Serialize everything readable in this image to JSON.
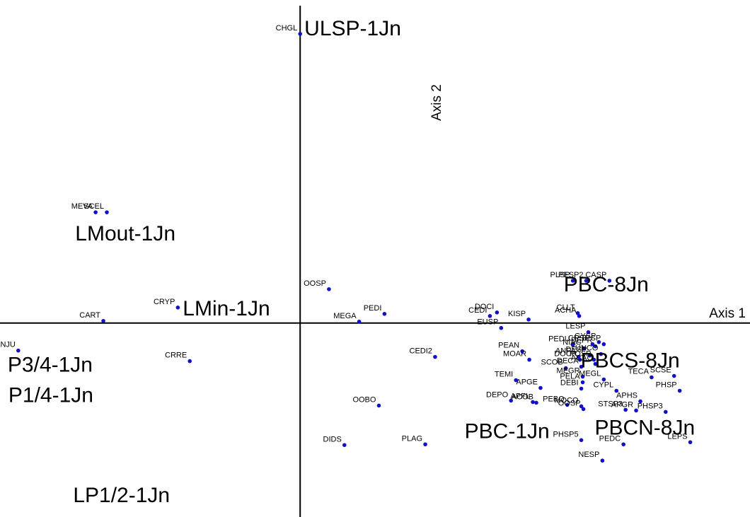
{
  "chart_data": {
    "type": "scatter",
    "title": "",
    "axis_labels": {
      "x": "Axis 1",
      "y": "Axis 2"
    },
    "xlim": [
      -427,
      640
    ],
    "ylim": [
      -275,
      458
    ],
    "colors": {
      "points": "#1010c8",
      "axes": "#000000",
      "text": "#000000"
    },
    "species": [
      {
        "name": "CHGL",
        "x": 0,
        "y": 410
      },
      {
        "name": "MEVA",
        "x": -291,
        "y": 157
      },
      {
        "name": "SCEL",
        "x": -275,
        "y": 157
      },
      {
        "name": "OOSP",
        "x": 41,
        "y": 48
      },
      {
        "name": "CRYP",
        "x": -174,
        "y": 22
      },
      {
        "name": "CART",
        "x": -280,
        "y": 3
      },
      {
        "name": "MEGA",
        "x": 84,
        "y": 2
      },
      {
        "name": "PEDI",
        "x": 120,
        "y": 13
      },
      {
        "name": "ANJU",
        "x": -401,
        "y": -39
      },
      {
        "name": "CRRE",
        "x": -157,
        "y": -54
      },
      {
        "name": "CEDI2",
        "x": 192,
        "y": -48
      },
      {
        "name": "DOCI",
        "x": 280,
        "y": 15
      },
      {
        "name": "CEDI",
        "x": 270,
        "y": 10
      },
      {
        "name": "EUSP",
        "x": 286,
        "y": -7
      },
      {
        "name": "KISP",
        "x": 325,
        "y": 5
      },
      {
        "name": "PLSP",
        "x": 388,
        "y": 60
      },
      {
        "name": "PESP2",
        "x": 407,
        "y": 60
      },
      {
        "name": "CASP",
        "x": 440,
        "y": 60
      },
      {
        "name": "CLLT",
        "x": 395,
        "y": 14
      },
      {
        "name": "ACHA",
        "x": 397,
        "y": 10
      },
      {
        "name": "LESP",
        "x": 410,
        "y": -13
      },
      {
        "name": "GYSP",
        "x": 425,
        "y": -27
      },
      {
        "name": "TESP",
        "x": 432,
        "y": -30
      },
      {
        "name": "DEPR",
        "x": 420,
        "y": -33
      },
      {
        "name": "CRSP",
        "x": 416,
        "y": -30
      },
      {
        "name": "PEDU",
        "x": 388,
        "y": -31
      },
      {
        "name": "NIAC",
        "x": 404,
        "y": -36
      },
      {
        "name": "UNCO",
        "x": 428,
        "y": -44
      },
      {
        "name": "DESP",
        "x": 412,
        "y": -46
      },
      {
        "name": "POSP",
        "x": 418,
        "y": -52
      },
      {
        "name": "PEAN",
        "x": 316,
        "y": -40
      },
      {
        "name": "ANFA",
        "x": 396,
        "y": -48
      },
      {
        "name": "DOCR",
        "x": 398,
        "y": -52
      },
      {
        "name": "MOAR",
        "x": 326,
        "y": -52
      },
      {
        "name": "ACAC",
        "x": 420,
        "y": -58
      },
      {
        "name": "DECA",
        "x": 400,
        "y": -62
      },
      {
        "name": "SCOB",
        "x": 378,
        "y": -64
      },
      {
        "name": "MEGR",
        "x": 402,
        "y": -76
      },
      {
        "name": "PELA",
        "x": 402,
        "y": -84
      },
      {
        "name": "MEGL",
        "x": 432,
        "y": -80
      },
      {
        "name": "TEMI",
        "x": 307,
        "y": -81
      },
      {
        "name": "APGE",
        "x": 342,
        "y": -92
      },
      {
        "name": "DEBI",
        "x": 400,
        "y": -93
      },
      {
        "name": "CYPL",
        "x": 450,
        "y": -96
      },
      {
        "name": "TECA",
        "x": 500,
        "y": -77
      },
      {
        "name": "SCSE",
        "x": 532,
        "y": -75
      },
      {
        "name": "PHSP",
        "x": 540,
        "y": -96
      },
      {
        "name": "APHS",
        "x": 484,
        "y": -111
      },
      {
        "name": "APGR",
        "x": 478,
        "y": -124
      },
      {
        "name": "PHSP3",
        "x": 520,
        "y": -126
      },
      {
        "name": "STSP3",
        "x": 463,
        "y": -123
      },
      {
        "name": "ACOB",
        "x": 336,
        "y": -113
      },
      {
        "name": "DEPO",
        "x": 300,
        "y": -110
      },
      {
        "name": "PEBO",
        "x": 380,
        "y": -116
      },
      {
        "name": "APFL",
        "x": 331,
        "y": -112
      },
      {
        "name": "OOSP",
        "x": 403,
        "y": -122
      },
      {
        "name": "MOCO",
        "x": 400,
        "y": -118
      },
      {
        "name": "OOBO",
        "x": 112,
        "y": -117
      },
      {
        "name": "PLAG",
        "x": 178,
        "y": -172
      },
      {
        "name": "DIDS",
        "x": 63,
        "y": -173
      },
      {
        "name": "PHSP5",
        "x": 400,
        "y": -166
      },
      {
        "name": "PEDC",
        "x": 460,
        "y": -172
      },
      {
        "name": "LEPS",
        "x": 555,
        "y": -169
      },
      {
        "name": "NESP",
        "x": 430,
        "y": -195
      }
    ],
    "groups": [
      {
        "name": "ULSP-1Jn",
        "x": 6,
        "y": 408
      },
      {
        "name": "LMout-1Jn",
        "x": -320,
        "y": 117
      },
      {
        "name": "LMin-1Jn",
        "x": -167,
        "y": 11
      },
      {
        "name": "PBC-8Jn",
        "x": 375,
        "y": 45
      },
      {
        "name": "P3/4-1Jn",
        "x": -416,
        "y": -69
      },
      {
        "name": "P1/4-1Jn",
        "x": -415,
        "y": -112
      },
      {
        "name": "PBCS-8Jn",
        "x": 399,
        "y": -63
      },
      {
        "name": "PBC-1Jn",
        "x": 234,
        "y": -163
      },
      {
        "name": "PBCN-8Jn",
        "x": 419,
        "y": -158
      },
      {
        "name": "LP1/2-1Jn",
        "x": -323,
        "y": -254
      }
    ]
  }
}
